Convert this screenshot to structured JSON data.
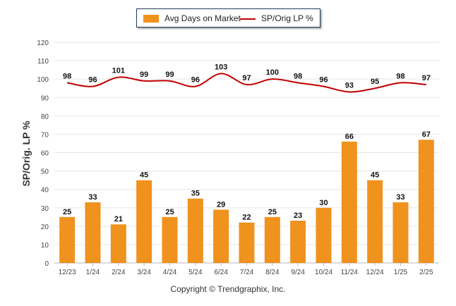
{
  "chart_data": {
    "type": "bar",
    "categories": [
      "12/23",
      "1/24",
      "2/24",
      "3/24",
      "4/24",
      "5/24",
      "6/24",
      "7/24",
      "8/24",
      "9/24",
      "10/24",
      "11/24",
      "12/24",
      "1/25",
      "2/25"
    ],
    "series": [
      {
        "name": "Avg Days on Market",
        "type": "bar",
        "color": "#f0921e",
        "values": [
          25,
          33,
          21,
          45,
          25,
          35,
          29,
          22,
          25,
          23,
          30,
          66,
          45,
          33,
          67
        ]
      },
      {
        "name": "SP/Orig LP %",
        "type": "line",
        "color": "#c00000",
        "values": [
          98,
          96,
          101,
          99,
          99,
          96,
          103,
          97,
          100,
          98,
          96,
          93,
          95,
          98,
          97
        ]
      }
    ],
    "ylabel": "SP/Orig. LP %",
    "ylim": [
      0,
      120
    ],
    "yticks": [
      0,
      10,
      20,
      30,
      40,
      50,
      60,
      70,
      80,
      90,
      100,
      110,
      120
    ],
    "grid": true,
    "legend": "top-center"
  },
  "footer": "Copyright © Trendgraphix, Inc."
}
